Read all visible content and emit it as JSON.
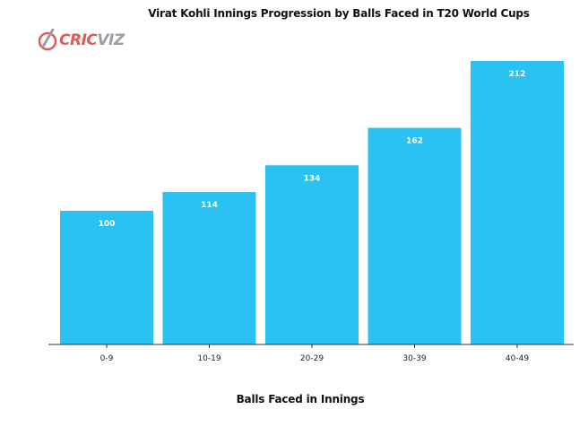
{
  "logo": {
    "text_a": "CRIC",
    "text_b": "VIZ"
  },
  "chart_data": {
    "type": "bar",
    "title": "Virat Kohli Innings Progression by Balls Faced in T20 World Cups",
    "xlabel": "Balls Faced in Innings",
    "ylabel": "",
    "categories": [
      "0-9",
      "10-19",
      "20-29",
      "30-39",
      "40-49"
    ],
    "values": [
      100,
      114,
      134,
      162,
      212
    ],
    "data_labels": [
      "100",
      "114",
      "134",
      "162",
      "212"
    ],
    "ylim": [
      0,
      212
    ],
    "grid": false,
    "bar_color": "#29c2f2"
  }
}
